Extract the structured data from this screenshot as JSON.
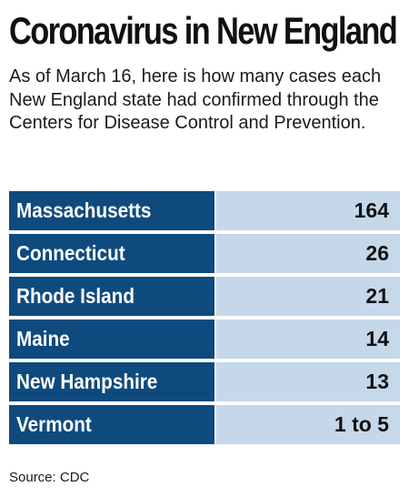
{
  "chart_data": {
    "type": "table",
    "title": "Coronavirus in New England",
    "subtitle": "As of March 16, here is how many cases each New England state had confirmed through the Centers for Disease Control and Prevention.",
    "rows": [
      {
        "state": "Massachusetts",
        "cases": "164"
      },
      {
        "state": "Connecticut",
        "cases": "26"
      },
      {
        "state": "Rhode Island",
        "cases": "21"
      },
      {
        "state": "Maine",
        "cases": "14"
      },
      {
        "state": "New Hampshire",
        "cases": "13"
      },
      {
        "state": "Vermont",
        "cases": "1 to 5"
      }
    ],
    "source": "Source: CDC"
  },
  "colors": {
    "state_cell": "#0f4a7e",
    "value_cell": "#c5d8ea",
    "state_text": "#ffffff",
    "value_text": "#111111"
  }
}
